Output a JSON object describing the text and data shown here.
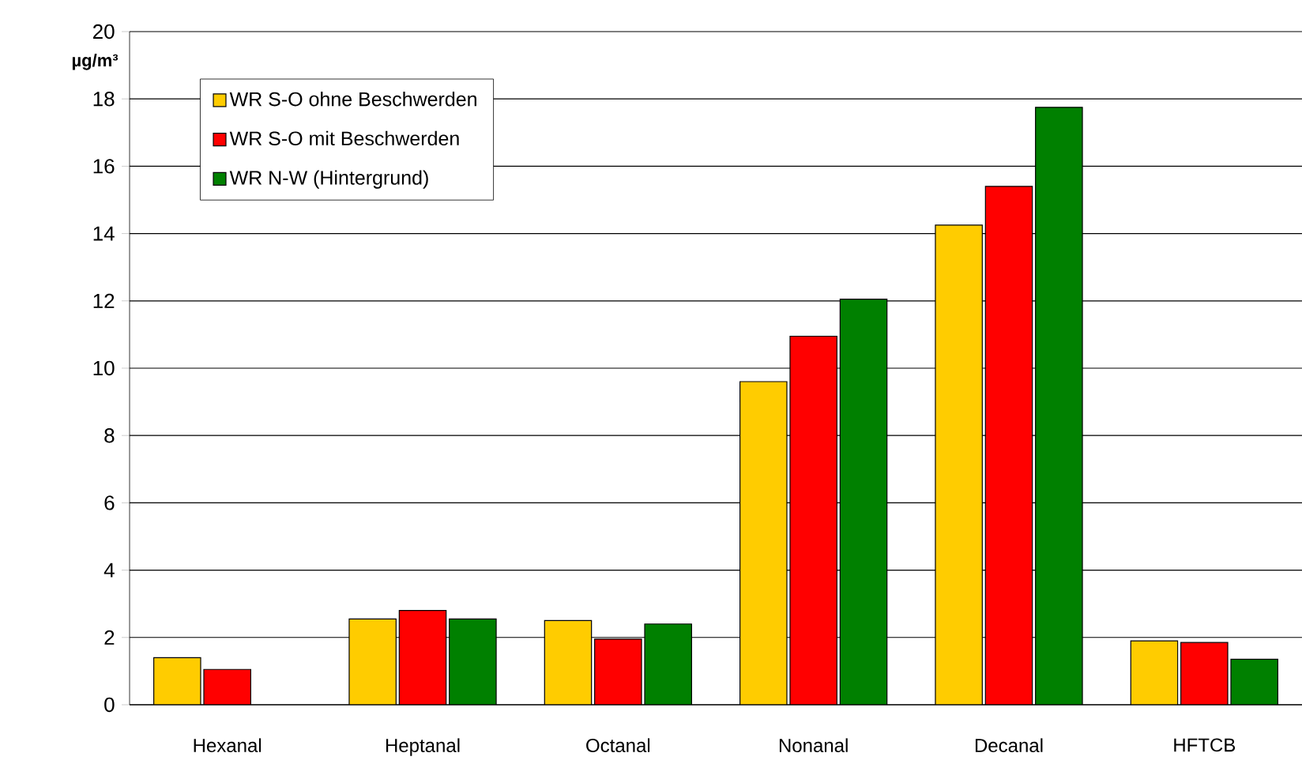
{
  "chart_data": {
    "type": "bar",
    "ylabel": "µg/m³",
    "categories": [
      "Hexanal",
      "Heptanal",
      "Octanal",
      "Nonanal",
      "Decanal",
      "HFTCB"
    ],
    "series": [
      {
        "name": "WR S-O ohne Beschwerden",
        "color": "#ffcc00",
        "values": [
          1.4,
          2.55,
          2.5,
          9.6,
          14.25,
          1.9
        ]
      },
      {
        "name": "WR S-O mit Beschwerden",
        "color": "#ff0000",
        "values": [
          1.05,
          2.8,
          1.95,
          10.95,
          15.4,
          1.85
        ]
      },
      {
        "name": "WR N-W (Hintergrund)",
        "color": "#008000",
        "values": [
          null,
          2.55,
          2.4,
          12.05,
          17.75,
          1.35
        ]
      }
    ],
    "ylim": [
      0,
      20
    ],
    "yticks": [
      0,
      2,
      4,
      6,
      8,
      10,
      12,
      14,
      16,
      18,
      20
    ],
    "grid": "y",
    "legend": "top left"
  }
}
